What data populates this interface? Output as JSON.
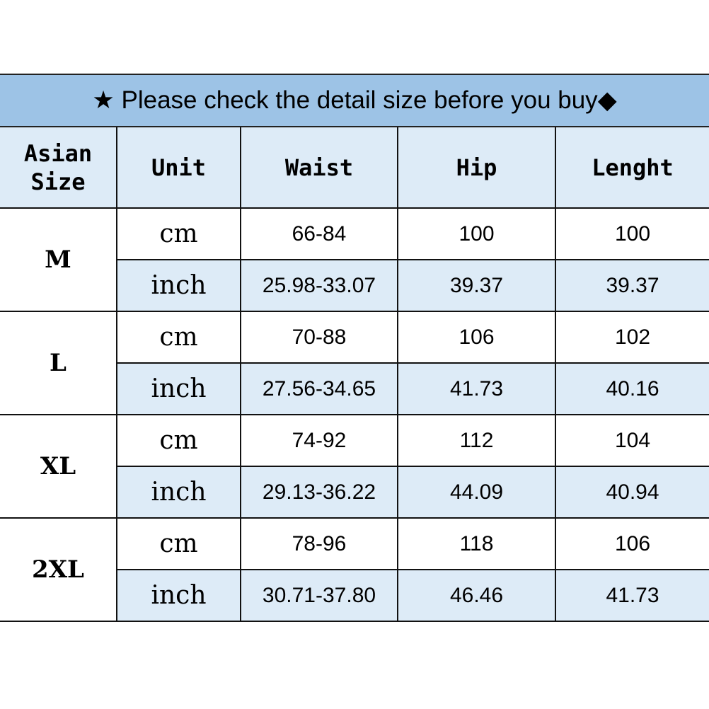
{
  "banner": {
    "star_icon": "★",
    "text": "Please check the detail size before you buy",
    "diamond_icon": "◆"
  },
  "headers": [
    "Asian Size",
    "Unit",
    "Waist",
    "Hip",
    "Lenght"
  ],
  "colors": {
    "banner": "#9dc3e6",
    "light_cell": "#ddebf7",
    "border": "#111111"
  },
  "rows": [
    {
      "size": "M",
      "cm": {
        "unit": "cm",
        "waist": "66-84",
        "hip": "100",
        "length": "100"
      },
      "inch": {
        "unit": "inch",
        "waist": "25.98-33.07",
        "hip": "39.37",
        "length": "39.37"
      }
    },
    {
      "size": "L",
      "cm": {
        "unit": "cm",
        "waist": "70-88",
        "hip": "106",
        "length": "102"
      },
      "inch": {
        "unit": "inch",
        "waist": "27.56-34.65",
        "hip": "41.73",
        "length": "40.16"
      }
    },
    {
      "size": "XL",
      "cm": {
        "unit": "cm",
        "waist": "74-92",
        "hip": "112",
        "length": "104"
      },
      "inch": {
        "unit": "inch",
        "waist": "29.13-36.22",
        "hip": "44.09",
        "length": "40.94"
      }
    },
    {
      "size": "2XL",
      "cm": {
        "unit": "cm",
        "waist": "78-96",
        "hip": "118",
        "length": "106"
      },
      "inch": {
        "unit": "inch",
        "waist": "30.71-37.80",
        "hip": "46.46",
        "length": "41.73"
      }
    }
  ]
}
